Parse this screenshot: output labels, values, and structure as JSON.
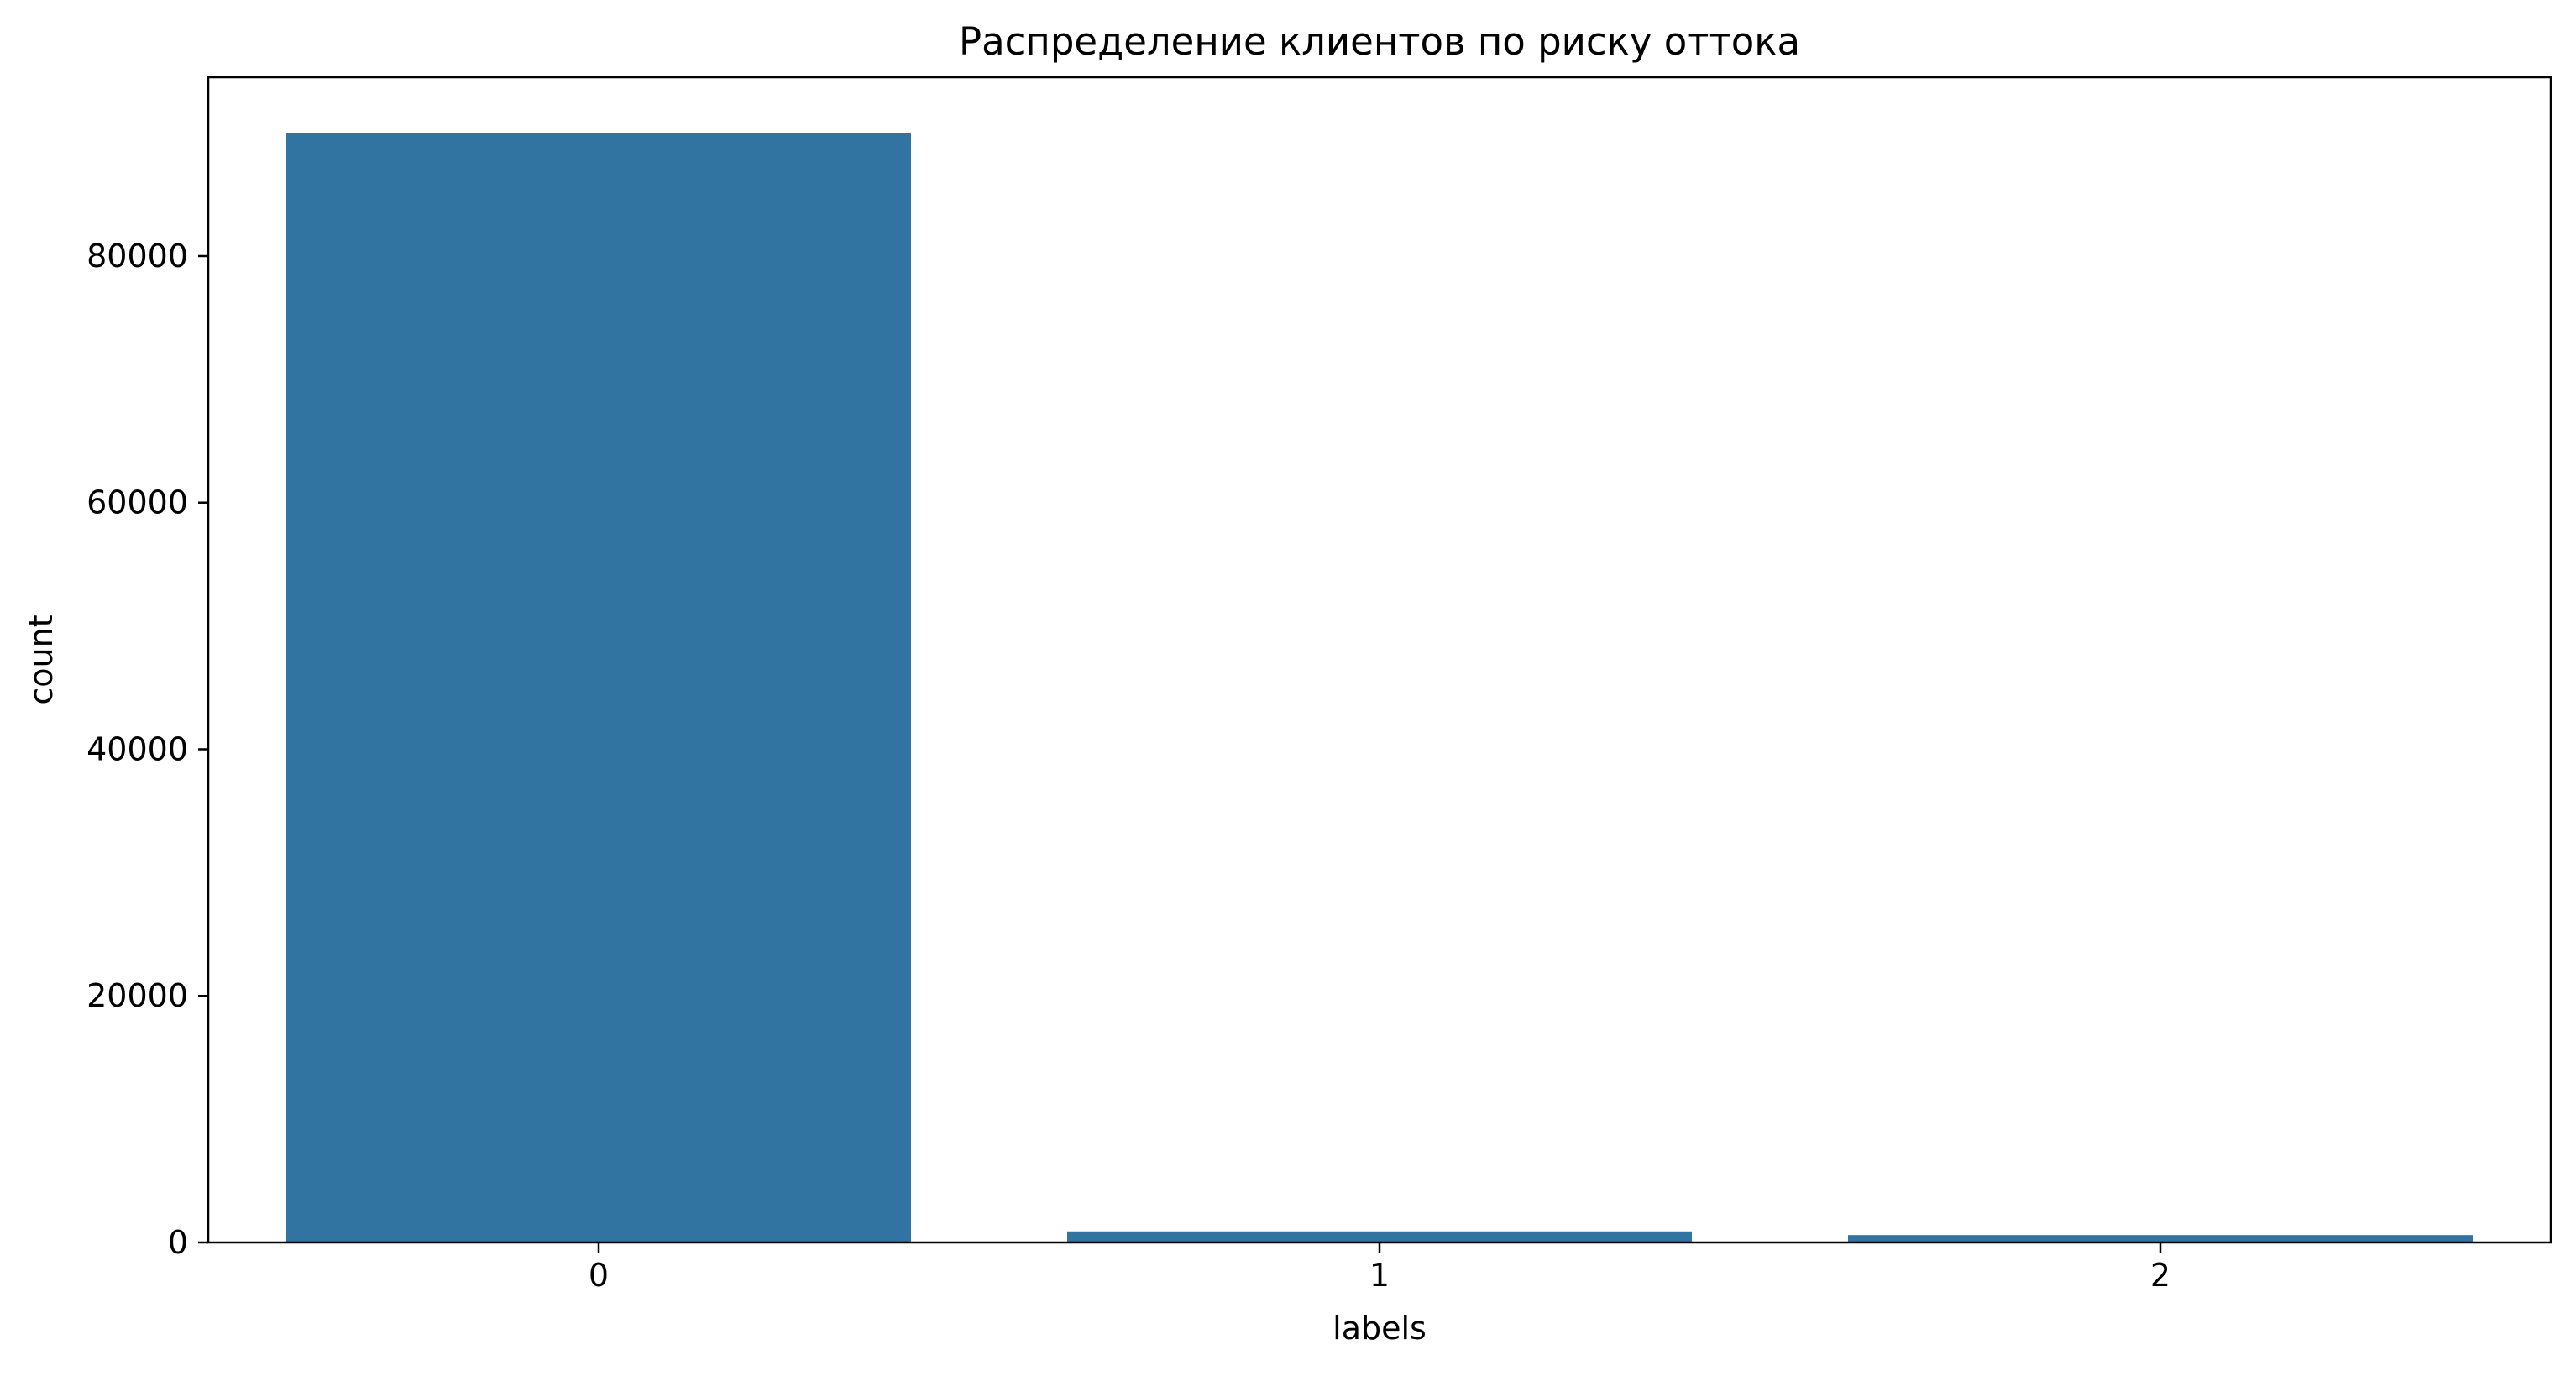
{
  "chart_data": {
    "type": "bar",
    "title": "Распределение клиентов по риску оттока",
    "xlabel": "labels",
    "ylabel": "count",
    "categories": [
      "0",
      "1",
      "2"
    ],
    "values": [
      90000,
      900,
      600
    ],
    "ylim": [
      0,
      94500
    ],
    "yticks": [
      0,
      20000,
      40000,
      60000,
      80000
    ],
    "ytick_labels": [
      "0",
      "20000",
      "40000",
      "60000",
      "80000"
    ],
    "bar_color": "#3274a1",
    "grid": false,
    "legend": "none"
  }
}
